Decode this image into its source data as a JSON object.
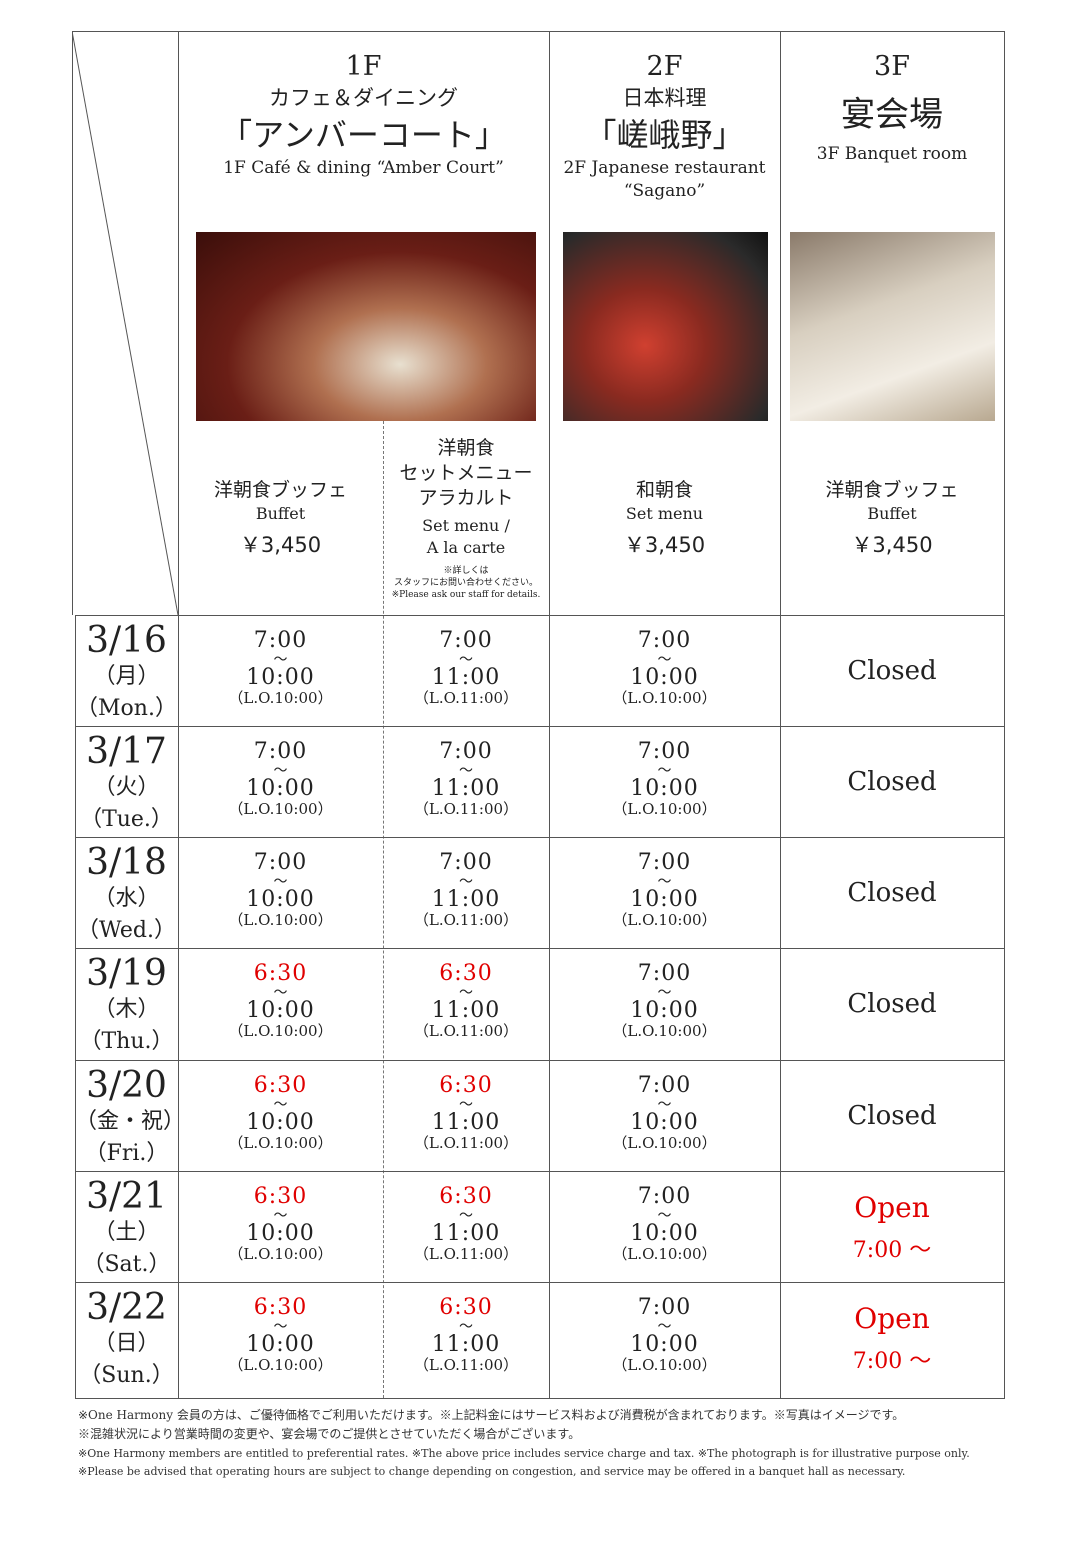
{
  "header": {
    "f1": {
      "floor": "1F",
      "sub": "カフェ＆ダイニング",
      "name": "「アンバーコート」",
      "eng": "1F  Café & dining “Amber Court”"
    },
    "f2": {
      "floor": "2F",
      "sub": "日本料理",
      "name": "「嵯峨野」",
      "eng": "2F  Japanese restaurant",
      "eng2": "“Sagano”"
    },
    "f3": {
      "floor": "3F",
      "name": "宴会場",
      "eng": "3F  Banquet room"
    }
  },
  "menus": [
    {
      "jp": "洋朝食ブッフェ",
      "en": "Buffet",
      "price": "￥3,450"
    },
    {
      "jp1": "洋朝食",
      "jp2": "セットメニュー",
      "jp3": "アラカルト",
      "en1": "Set menu /",
      "en2": "A la carte",
      "note1": "※詳しくは",
      "note2": "スタッフにお問い合わせください。",
      "note3": "※Please ask our staff for details."
    },
    {
      "jp": "和朝食",
      "en": "Set menu",
      "price": "￥3,450"
    },
    {
      "jp": "洋朝食ブッフェ",
      "en": "Buffet",
      "price": "￥3,450"
    }
  ],
  "wave": "〜",
  "rows": [
    {
      "date": "3/16",
      "jp": "（月）",
      "en": "（Mon.）",
      "cells": [
        {
          "s": "7:00",
          "e": "10:00",
          "lo": "（L.O.10:00）",
          "red": false
        },
        {
          "s": "7:00",
          "e": "11:00",
          "lo": "（L.O.11:00）",
          "red": false
        },
        {
          "s": "7:00",
          "e": "10:00",
          "lo": "（L.O.10:00）",
          "red": false
        }
      ],
      "banquet": {
        "status": "Closed",
        "open": false
      }
    },
    {
      "date": "3/17",
      "jp": "（火）",
      "en": "（Tue.）",
      "cells": [
        {
          "s": "7:00",
          "e": "10:00",
          "lo": "（L.O.10:00）",
          "red": false
        },
        {
          "s": "7:00",
          "e": "11:00",
          "lo": "（L.O.11:00）",
          "red": false
        },
        {
          "s": "7:00",
          "e": "10:00",
          "lo": "（L.O.10:00）",
          "red": false
        }
      ],
      "banquet": {
        "status": "Closed",
        "open": false
      }
    },
    {
      "date": "3/18",
      "jp": "（水）",
      "en": "（Wed.）",
      "cells": [
        {
          "s": "7:00",
          "e": "10:00",
          "lo": "（L.O.10:00）",
          "red": false
        },
        {
          "s": "7:00",
          "e": "11:00",
          "lo": "（L.O.11:00）",
          "red": false
        },
        {
          "s": "7:00",
          "e": "10:00",
          "lo": "（L.O.10:00）",
          "red": false
        }
      ],
      "banquet": {
        "status": "Closed",
        "open": false
      }
    },
    {
      "date": "3/19",
      "jp": "（木）",
      "en": "（Thu.）",
      "cells": [
        {
          "s": "6:30",
          "e": "10:00",
          "lo": "（L.O.10:00）",
          "red": true
        },
        {
          "s": "6:30",
          "e": "11:00",
          "lo": "（L.O.11:00）",
          "red": true
        },
        {
          "s": "7:00",
          "e": "10:00",
          "lo": "（L.O.10:00）",
          "red": false
        }
      ],
      "banquet": {
        "status": "Closed",
        "open": false
      }
    },
    {
      "date": "3/20",
      "jp": "（金・祝）",
      "en": "（Fri.）",
      "cells": [
        {
          "s": "6:30",
          "e": "10:00",
          "lo": "（L.O.10:00）",
          "red": true
        },
        {
          "s": "6:30",
          "e": "11:00",
          "lo": "（L.O.11:00）",
          "red": true
        },
        {
          "s": "7:00",
          "e": "10:00",
          "lo": "（L.O.10:00）",
          "red": false
        }
      ],
      "banquet": {
        "status": "Closed",
        "open": false
      }
    },
    {
      "date": "3/21",
      "jp": "（土）",
      "en": "（Sat.）",
      "cells": [
        {
          "s": "6:30",
          "e": "10:00",
          "lo": "（L.O.10:00）",
          "red": true
        },
        {
          "s": "6:30",
          "e": "11:00",
          "lo": "（L.O.11:00）",
          "red": true
        },
        {
          "s": "7:00",
          "e": "10:00",
          "lo": "（L.O.10:00）",
          "red": false
        }
      ],
      "banquet": {
        "status": "Open",
        "time": "7:00 ～",
        "open": true
      }
    },
    {
      "date": "3/22",
      "jp": "（日）",
      "en": "（Sun.）",
      "cells": [
        {
          "s": "6:30",
          "e": "10:00",
          "lo": "（L.O.10:00）",
          "red": true
        },
        {
          "s": "6:30",
          "e": "11:00",
          "lo": "（L.O.11:00）",
          "red": true
        },
        {
          "s": "7:00",
          "e": "10:00",
          "lo": "（L.O.10:00）",
          "red": false
        }
      ],
      "banquet": {
        "status": "Open",
        "time": "7:00 ～",
        "open": true
      }
    }
  ],
  "footnotes": [
    "※One Harmony 会員の方は、ご優待価格でご利用いただけます。※上記料金にはサービス料および消費税が含まれております。※写真はイメージです。",
    "※混雑状況により営業時間の変更や、宴会場でのご提供とさせていただく場合がございます。",
    "※One Harmony members are entitled to preferential rates.  ※The above price includes service charge and tax.  ※The photograph is for illustrative purpose only.",
    "※Please be advised that operating hours are subject to change depending on congestion, and service may be offered in a banquet hall as necessary."
  ],
  "colors": {
    "accent_red": "#e00000",
    "border": "#555555"
  }
}
